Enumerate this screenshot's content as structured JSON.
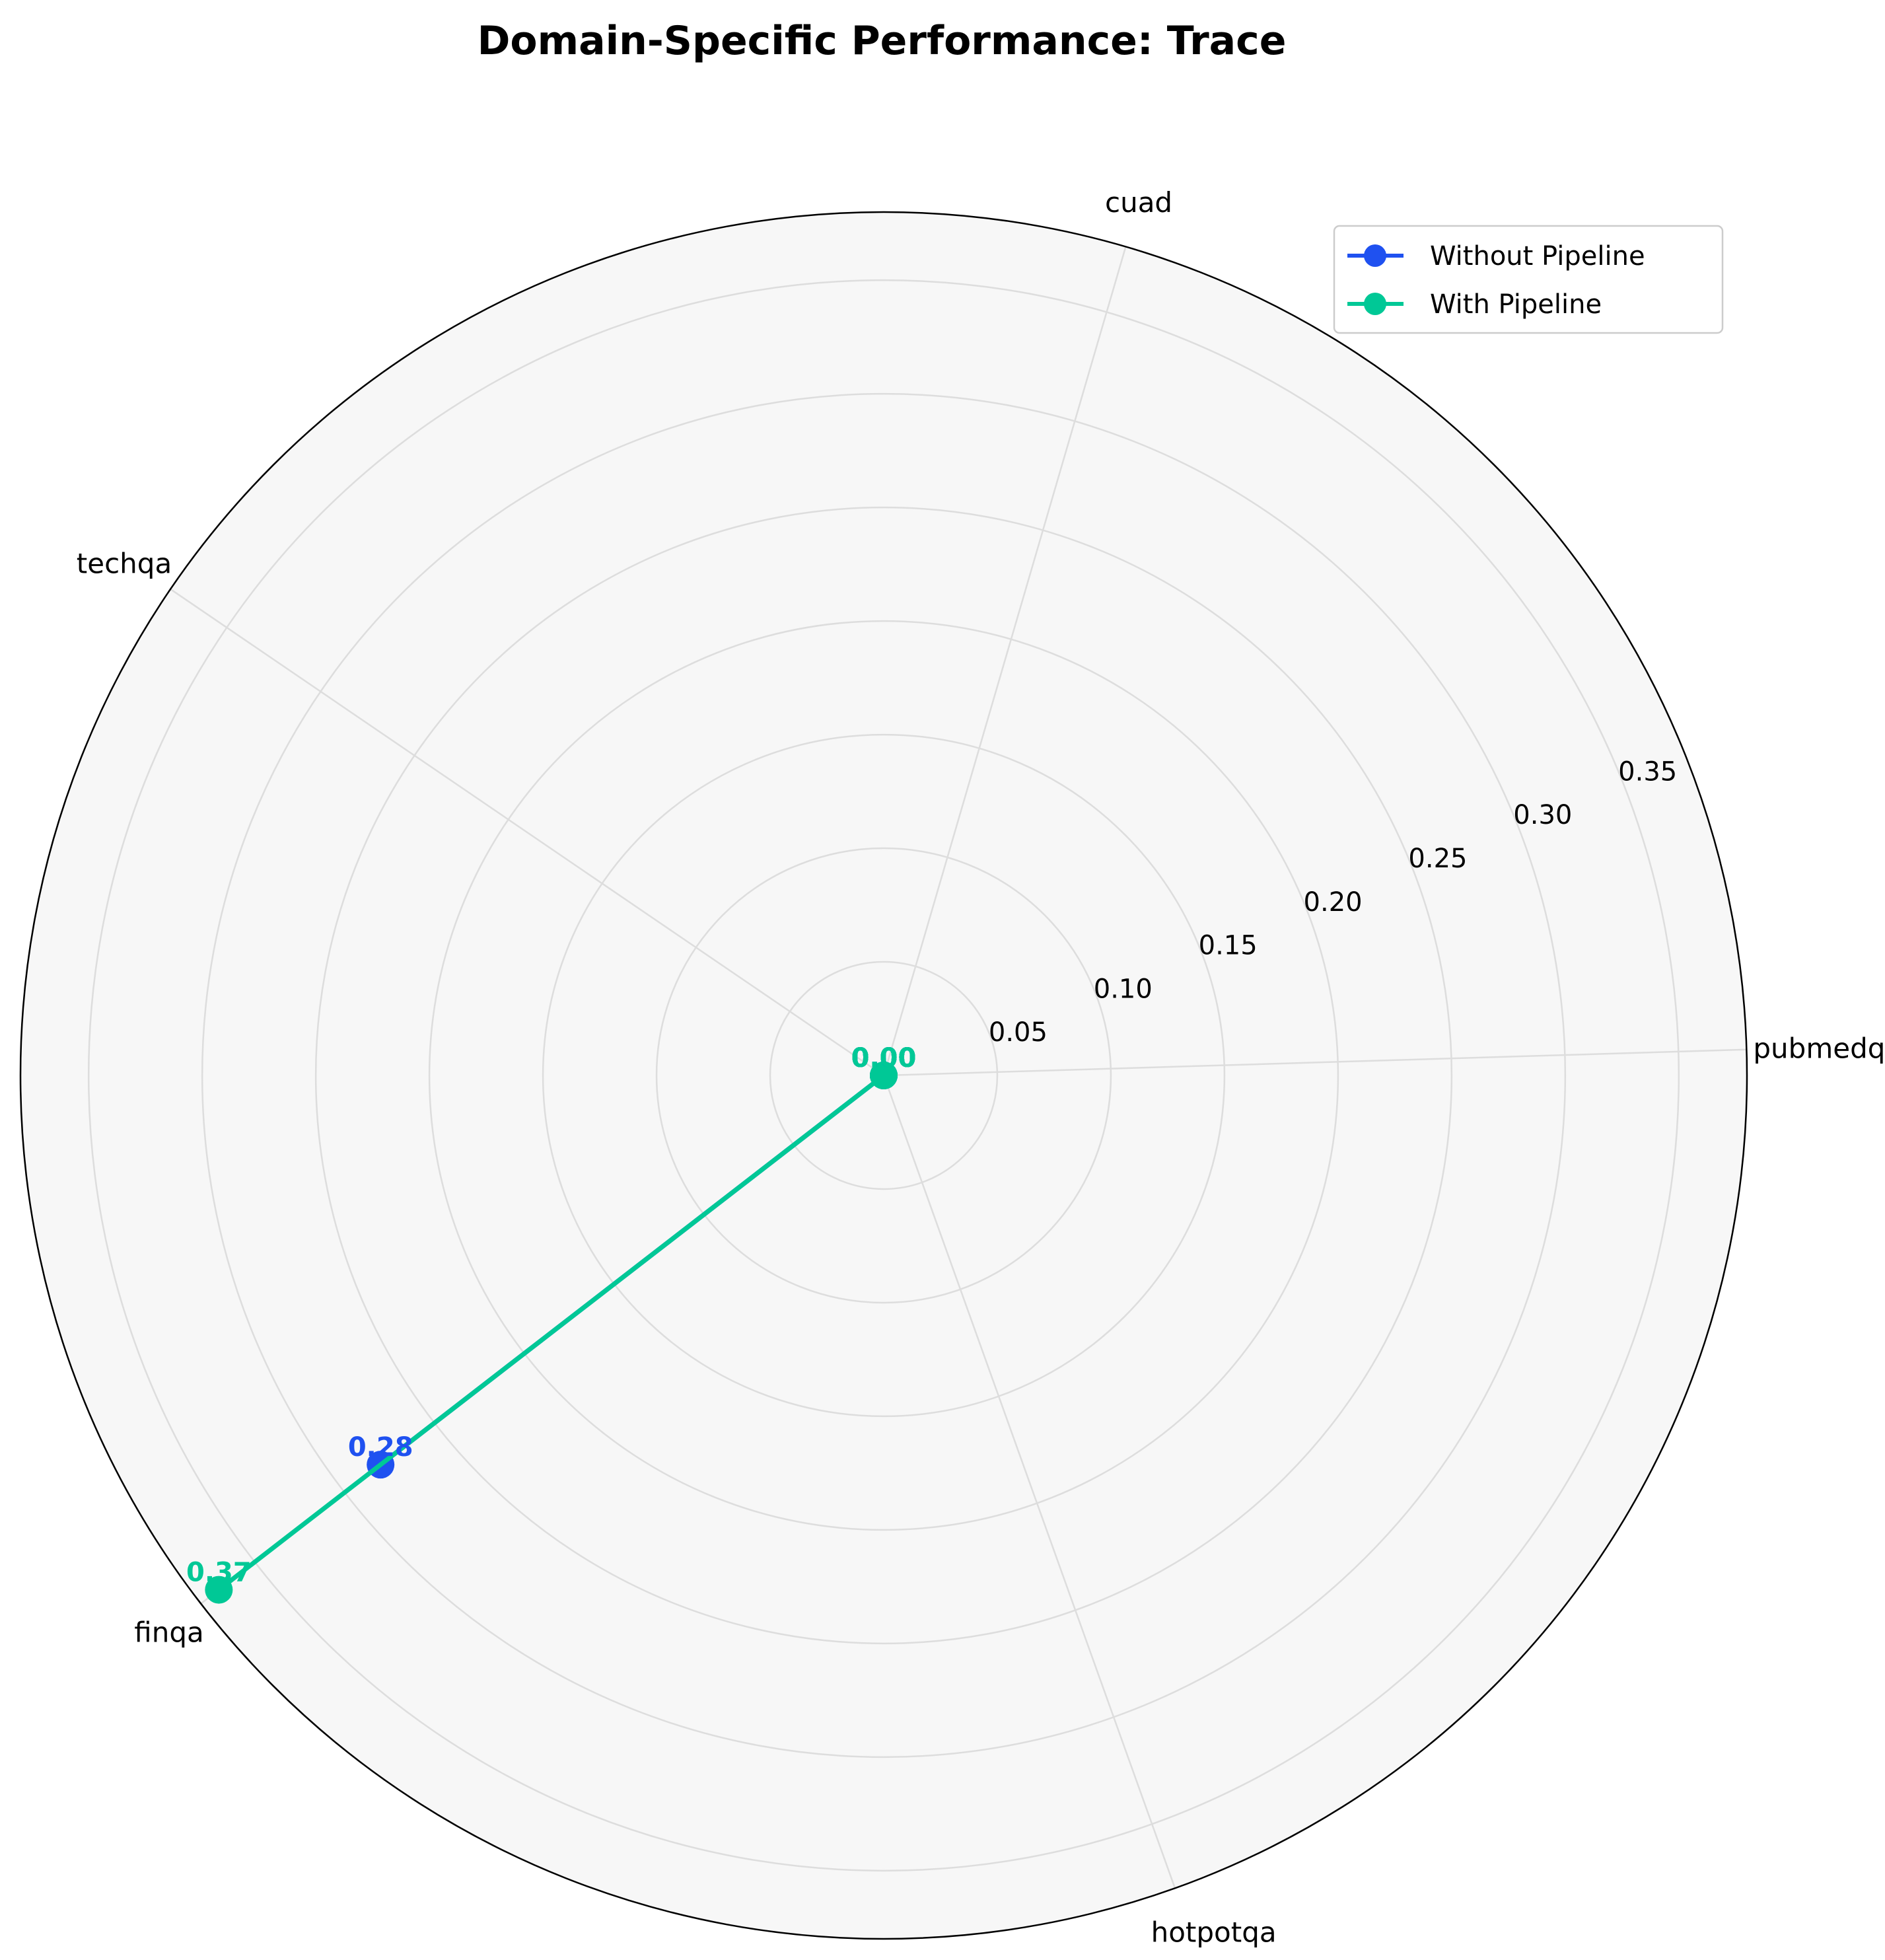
{
  "chart_data": {
    "type": "radar",
    "title": "Domain-Specific Performance: Trace",
    "categories": [
      "pubmedqa",
      "cuad",
      "techqa",
      "finqa",
      "hotpotqa"
    ],
    "series": [
      {
        "name": "Without Pipeline",
        "color": "#1f51f0",
        "values": [
          0.0,
          0.0,
          0.0,
          0.28,
          0.0
        ],
        "labels": [
          "0.00",
          "0.00",
          "0.00",
          "0.28",
          "0.00"
        ]
      },
      {
        "name": "With Pipeline",
        "color": "#00c896",
        "values": [
          0.0,
          0.0,
          0.0,
          0.37,
          0.0
        ],
        "labels": [
          "0.00",
          "0.00",
          "0.00",
          "0.37",
          "0.00"
        ]
      }
    ],
    "radial_ticks": [
      "0.05",
      "0.10",
      "0.15",
      "0.20",
      "0.25",
      "0.30",
      "0.35"
    ],
    "radial_tick_values": [
      0.05,
      0.1,
      0.15,
      0.2,
      0.25,
      0.3,
      0.35
    ],
    "rlim": [
      0,
      0.38
    ],
    "grid": true,
    "legend_position": "top-right"
  }
}
